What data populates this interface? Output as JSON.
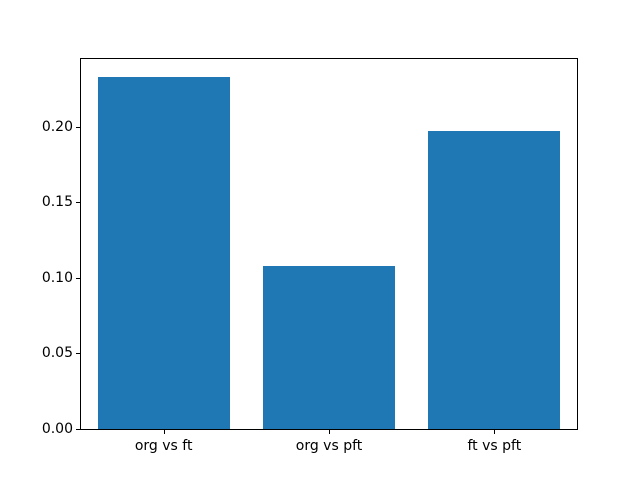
{
  "chart_data": {
    "type": "bar",
    "categories": [
      "org vs ft",
      "org vs pft",
      "ft vs pft"
    ],
    "values": [
      0.233,
      0.108,
      0.197
    ],
    "title": "",
    "xlabel": "",
    "ylabel": "",
    "ylim": [
      0,
      0.2447
    ],
    "yticks": [
      0.0,
      0.05,
      0.1,
      0.15,
      0.2
    ],
    "ytick_labels": [
      "0.00",
      "0.05",
      "0.10",
      "0.15",
      "0.20"
    ],
    "bar_width_fraction": 0.8,
    "grid": false,
    "legend_position": "none",
    "bar_color": "#1f77b4"
  },
  "colors": {
    "bar": "#1f77b4",
    "spine": "#000000",
    "tick_text": "#000000",
    "background": "#ffffff"
  }
}
